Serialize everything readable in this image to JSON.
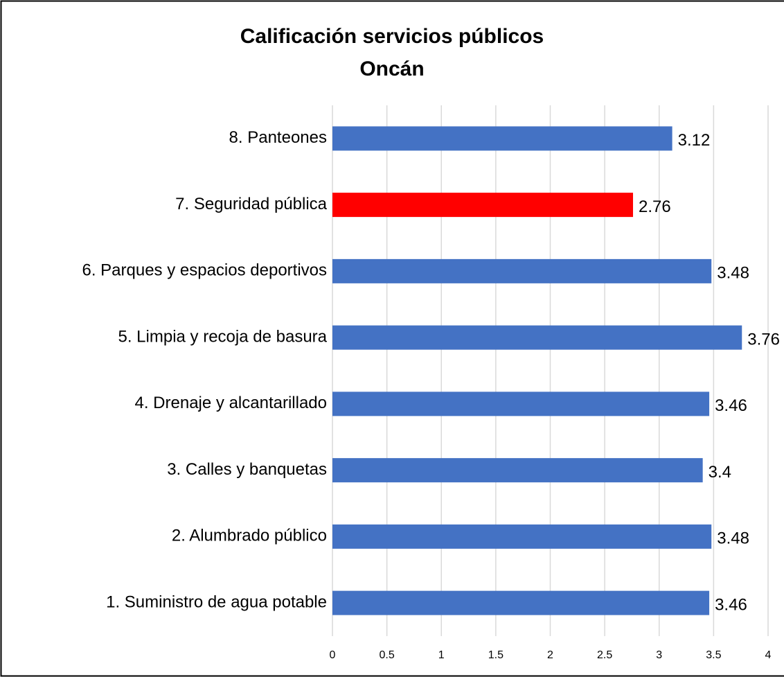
{
  "chart_data": {
    "type": "bar",
    "orientation": "horizontal",
    "title": "Calificación servicios públicos",
    "subtitle": "Oncán",
    "categories": [
      "1. Suministro de agua potable",
      "2. Alumbrado público",
      "3. Calles y banquetas",
      "4. Drenaje y alcantarillado",
      "5. Limpia y recoja de basura",
      "6. Parques y espacios deportivos",
      "7. Seguridad pública",
      "8. Panteones"
    ],
    "values": [
      3.46,
      3.48,
      3.4,
      3.46,
      3.76,
      3.48,
      2.76,
      3.12
    ],
    "colors": [
      "#4472c4",
      "#4472c4",
      "#4472c4",
      "#4472c4",
      "#4472c4",
      "#4472c4",
      "#ff0000",
      "#4472c4"
    ],
    "xlim": [
      0,
      4
    ],
    "xticks": [
      0,
      0.5,
      1,
      1.5,
      2,
      2.5,
      3,
      3.5,
      4
    ],
    "grid": true
  }
}
